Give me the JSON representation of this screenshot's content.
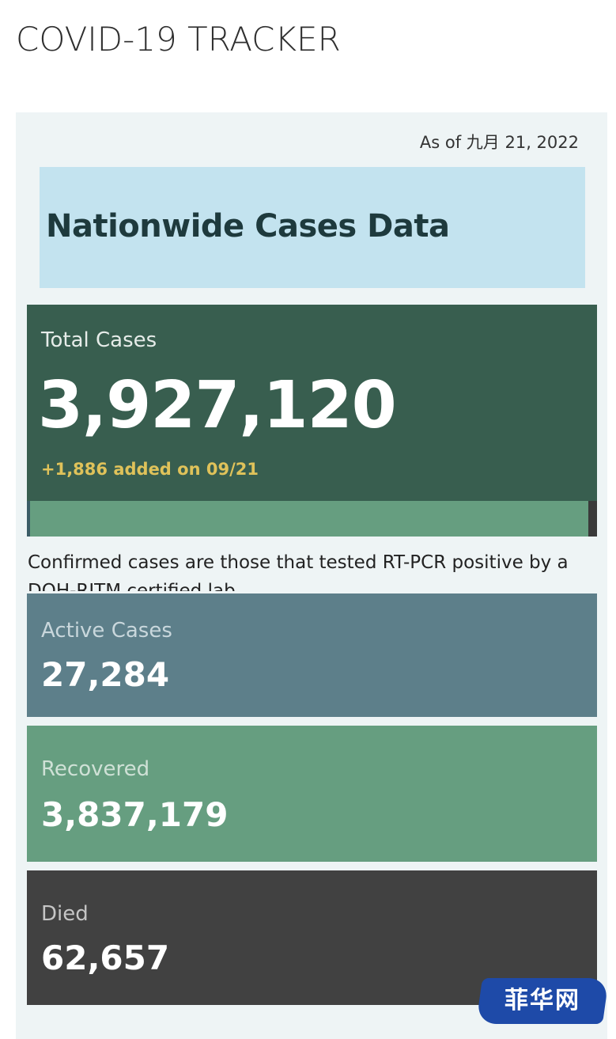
{
  "page": {
    "title": "COVID-19 TRACKER"
  },
  "dashboard": {
    "as_of": "As of 九月 21, 2022",
    "header_title": "Nationwide Cases Data",
    "total": {
      "label": "Total Cases",
      "value": "3,927,120",
      "added": "+1,886 added on 09/21"
    },
    "note": "Confirmed cases are those that tested RT-PCR positive by a DOH-RITM certified lab",
    "active": {
      "label": "Active Cases",
      "value": "27,284"
    },
    "recovered": {
      "label": "Recovered",
      "value": "3,837,179"
    },
    "died": {
      "label": "Died",
      "value": "62,657"
    }
  },
  "watermark": {
    "text": "菲华网"
  },
  "colors": {
    "header_bg": "#c3e3ef",
    "total_bg": "#385e4f",
    "added_text": "#dfc25a",
    "active_bg": "#5d7f8a",
    "recovered_bg": "#669e80",
    "died_bg": "#414141",
    "watermark_bg": "#1e4aa8"
  }
}
